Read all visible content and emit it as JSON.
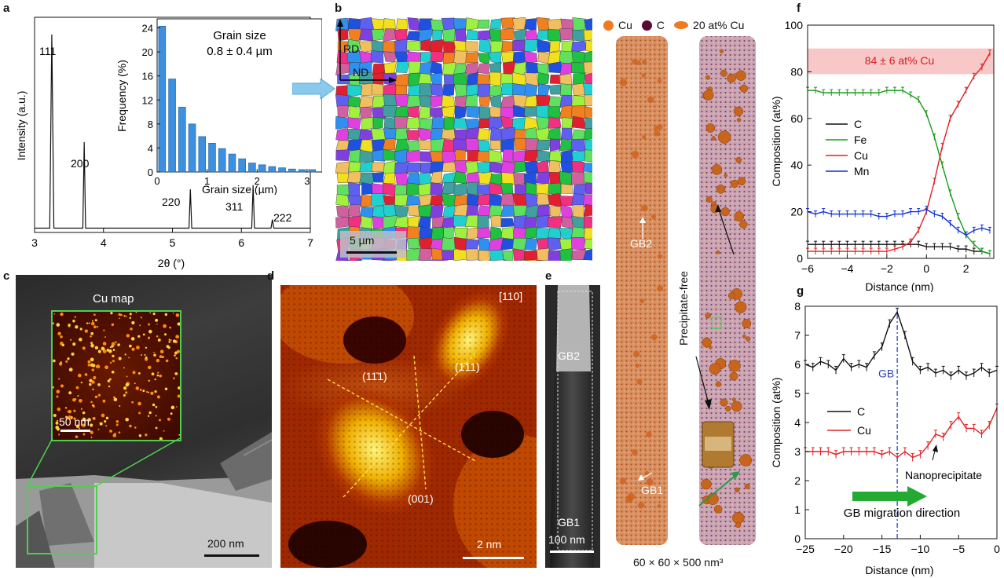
{
  "panels": {
    "a": {
      "letter": "a",
      "peaks": [
        "111",
        "200",
        "220",
        "311",
        "222"
      ],
      "xlabel": "2θ (°)",
      "ylabel": "Intensity (a.u.)",
      "xticks": [
        "3",
        "4",
        "5",
        "6",
        "7"
      ],
      "inset": {
        "title": "Grain size",
        "value": "0.8 ± 0.4 µm",
        "xlabel": "Grain size (µm)",
        "ylabel": "Frequency (%)",
        "yticks": [
          "0",
          "4",
          "8",
          "12",
          "16",
          "20",
          "24"
        ],
        "xticks": [
          "0",
          "1",
          "2",
          "3"
        ]
      }
    },
    "b": {
      "letter": "b",
      "rd": "RD",
      "nd": "ND",
      "scale": "5 µm"
    },
    "c": {
      "letter": "c",
      "map_label": "Cu map",
      "inset_scale": "50 nm",
      "scale": "200 nm"
    },
    "d": {
      "letter": "d",
      "zone": "[110]",
      "planes": [
        "(11̄1)",
        "(1̄11)",
        "(001)"
      ],
      "scale": "2 nm"
    },
    "e": {
      "letter": "e",
      "gb2": "GB2",
      "gb1": "GB1",
      "scale": "100 nm",
      "legend": [
        "Cu",
        "C",
        "20 at% Cu"
      ],
      "apt_gb2": "GB2",
      "apt_gb1": "GB1",
      "precip_free": "Precipitate-free",
      "volume": "60 × 60 × 500 nm³"
    },
    "f": {
      "letter": "f",
      "band_label": "84 ± 6 at% Cu",
      "xlabel": "Distance (nm)",
      "ylabel": "Composition (at%)",
      "yticks": [
        "0",
        "20",
        "40",
        "60",
        "80",
        "100"
      ],
      "xticks": [
        "−6",
        "−4",
        "−2",
        "0",
        "2"
      ],
      "legend": [
        "C",
        "Fe",
        "Cu",
        "Mn"
      ]
    },
    "g": {
      "letter": "g",
      "xlabel": "Distance (nm)",
      "ylabel": "Composition (at%)",
      "yticks": [
        "0",
        "1",
        "2",
        "3",
        "4",
        "5",
        "6",
        "7",
        "8"
      ],
      "xticks": [
        "−25",
        "−20",
        "−15",
        "−10",
        "−5",
        "0"
      ],
      "legend": [
        "C",
        "Cu"
      ],
      "gb_label": "GB",
      "nano_label": "Nanoprecipitate",
      "migration": "GB migration direction"
    }
  },
  "chart_data": [
    {
      "type": "line",
      "id": "a-xrd",
      "x": [
        3.0,
        3.22,
        3.25,
        3.28,
        3.7,
        3.72,
        3.74,
        5.24,
        5.26,
        5.28,
        6.15,
        6.17,
        6.19,
        6.43,
        6.45,
        6.47,
        7.0
      ],
      "y": [
        0.02,
        0.02,
        0.92,
        0.02,
        0.02,
        0.42,
        0.02,
        0.02,
        0.2,
        0.02,
        0.02,
        0.22,
        0.02,
        0.02,
        0.06,
        0.02,
        0.02
      ],
      "xlim": [
        3,
        7
      ],
      "xlabel": "2θ (°)",
      "ylabel": "Intensity (a.u.)"
    },
    {
      "type": "bar",
      "id": "a-inset-hist",
      "x": [
        0.1,
        0.3,
        0.5,
        0.7,
        0.9,
        1.1,
        1.3,
        1.5,
        1.7,
        1.9,
        2.1,
        2.3,
        2.5,
        2.7,
        2.9,
        3.1
      ],
      "values": [
        24.3,
        15.5,
        10.8,
        8.0,
        5.9,
        4.8,
        3.9,
        3.0,
        2.2,
        1.5,
        1.2,
        0.9,
        0.7,
        0.5,
        0.4,
        0.4
      ],
      "xlim": [
        0,
        3.3
      ],
      "ylim": [
        0,
        25
      ],
      "xlabel": "Grain size (µm)",
      "ylabel": "Frequency (%)"
    },
    {
      "type": "line",
      "id": "f-profile",
      "x": [
        -6.0,
        -5.6,
        -5.2,
        -4.8,
        -4.4,
        -4.0,
        -3.6,
        -3.2,
        -2.8,
        -2.4,
        -2.0,
        -1.6,
        -1.2,
        -0.8,
        -0.4,
        0.0,
        0.4,
        0.8,
        1.2,
        1.6,
        2.0,
        2.4,
        2.8,
        3.2
      ],
      "series": [
        {
          "name": "C",
          "color": "#111111",
          "values": [
            6,
            6,
            6,
            6,
            6,
            6,
            6,
            6,
            6,
            6,
            6,
            6,
            6,
            6,
            6,
            5,
            5,
            5,
            5,
            4,
            4,
            3,
            3,
            2
          ]
        },
        {
          "name": "Fe",
          "color": "#1a9a1a",
          "values": [
            72,
            72,
            71,
            71,
            71,
            71,
            71,
            71,
            71,
            71,
            72,
            72,
            72,
            70,
            68,
            62,
            52,
            40,
            28,
            18,
            10,
            6,
            3,
            2
          ]
        },
        {
          "name": "Cu",
          "color": "#e02020",
          "values": [
            3,
            3,
            3,
            3,
            3,
            3,
            3,
            3,
            3,
            3,
            3,
            4,
            5,
            7,
            12,
            20,
            33,
            48,
            60,
            66,
            72,
            78,
            82,
            88
          ]
        },
        {
          "name": "Mn",
          "color": "#1030d0",
          "values": [
            20,
            19,
            20,
            19,
            19,
            19,
            19,
            19,
            19,
            18,
            18,
            19,
            19,
            20,
            20,
            21,
            19,
            18,
            15,
            12,
            10,
            12,
            13,
            12
          ]
        }
      ],
      "xlim": [
        -6,
        3.4
      ],
      "ylim": [
        0,
        100
      ],
      "band": [
        79,
        90
      ],
      "xlabel": "Distance (nm)",
      "ylabel": "Composition (at%)"
    },
    {
      "type": "line",
      "id": "g-profile",
      "x": [
        -25,
        -24,
        -23,
        -22,
        -21,
        -20,
        -19,
        -18,
        -17,
        -16,
        -15,
        -14,
        -13,
        -12,
        -11,
        -10,
        -9,
        -8,
        -7,
        -6,
        -5,
        -4,
        -3,
        -2,
        -1,
        0
      ],
      "series": [
        {
          "name": "C",
          "color": "#111111",
          "values": [
            6.0,
            5.9,
            6.1,
            6.0,
            5.8,
            6.2,
            5.9,
            6.0,
            5.9,
            6.3,
            6.6,
            7.4,
            7.8,
            7.0,
            6.1,
            5.8,
            5.9,
            5.7,
            5.8,
            5.6,
            5.8,
            5.6,
            5.7,
            5.9,
            5.7,
            5.8
          ]
        },
        {
          "name": "Cu",
          "color": "#e02020",
          "values": [
            3.0,
            3.0,
            3.0,
            3.0,
            2.9,
            3.0,
            3.0,
            3.0,
            3.0,
            3.0,
            2.9,
            3.0,
            2.8,
            3.0,
            2.8,
            2.9,
            3.2,
            3.6,
            3.5,
            3.9,
            4.2,
            3.8,
            3.8,
            3.6,
            3.9,
            4.5
          ]
        }
      ],
      "xlim": [
        -25,
        0
      ],
      "ylim": [
        0,
        8
      ],
      "gb_x": -13,
      "xlabel": "Distance (nm)",
      "ylabel": "Composition (at%)"
    }
  ]
}
